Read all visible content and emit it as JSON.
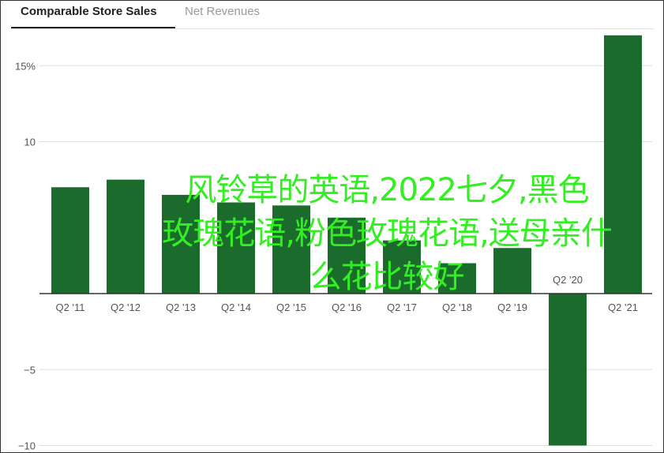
{
  "tabs": [
    {
      "label": "Comparable Store Sales",
      "active": true
    },
    {
      "label": "Net Revenues",
      "active": false
    }
  ],
  "overlay_text": [
    "风铃草的英语,2022七夕,黑色",
    "玫瑰花语,粉色玫瑰花语,送母亲什",
    "么花比较好"
  ],
  "colors": {
    "bar": "#1a6b2c",
    "grid": "#dddddd",
    "axis": "#333333",
    "overlay": "#33ee22"
  },
  "chart_data": {
    "type": "bar",
    "categories": [
      "Q2 '11",
      "Q2 '12",
      "Q2 '13",
      "Q2 '14",
      "Q2 '15",
      "Q2 '16",
      "Q2 '17",
      "Q2 '18",
      "Q2 '19",
      "Q2 '20",
      "Q2 '21"
    ],
    "values": [
      7,
      7.5,
      6.5,
      6,
      5.8,
      5,
      3.5,
      2,
      3,
      -10,
      17
    ],
    "ylim": [
      -10.2,
      16.8
    ],
    "yticks": [
      {
        "value": 15,
        "label": "15%"
      },
      {
        "value": 10,
        "label": "10"
      },
      {
        "value": -5,
        "label": "−5"
      },
      {
        "value": -10,
        "label": "−10"
      }
    ],
    "grid": true,
    "xlabel": "",
    "ylabel": ""
  }
}
